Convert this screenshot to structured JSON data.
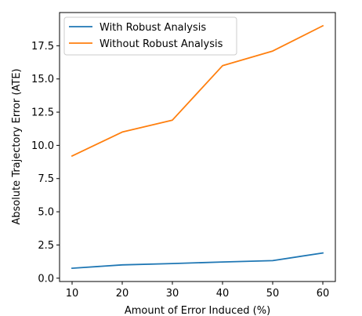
{
  "chart_data": {
    "type": "line",
    "title": "",
    "xlabel": "Amount of Error Induced (%)",
    "ylabel": "Absolute Trajectory Error (ATE)",
    "x": [
      10,
      20,
      30,
      40,
      50,
      60
    ],
    "xticks": [
      "10",
      "20",
      "30",
      "40",
      "50",
      "60"
    ],
    "yticks": [
      "0.0",
      "2.5",
      "5.0",
      "7.5",
      "10.0",
      "12.5",
      "15.0",
      "17.5"
    ],
    "xlim": [
      7.5,
      62.5
    ],
    "ylim": [
      -0.25,
      20.0
    ],
    "grid": false,
    "legend_position": "top-left",
    "series": [
      {
        "name": "With Robust Analysis",
        "color": "#1f77b4",
        "values": [
          0.75,
          1.0,
          1.1,
          1.22,
          1.32,
          1.9
        ]
      },
      {
        "name": "Without Robust Analysis",
        "color": "#ff7f0e",
        "values": [
          9.2,
          11.0,
          11.9,
          16.0,
          17.1,
          19.0
        ]
      }
    ]
  }
}
